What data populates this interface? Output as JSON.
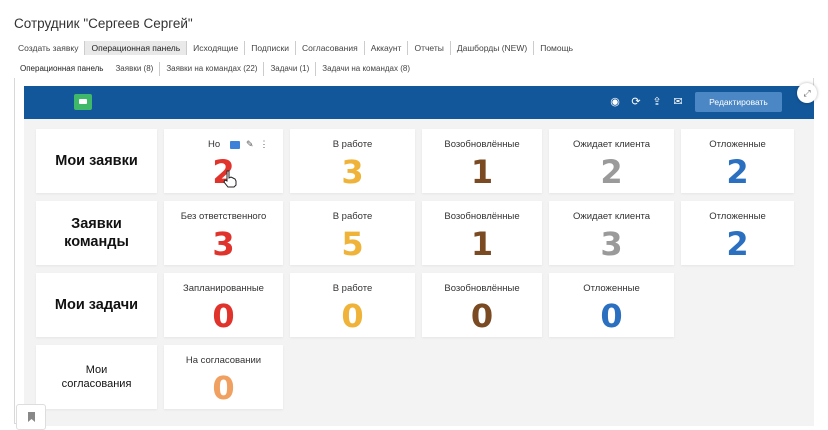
{
  "page_title": "Сотрудник \"Сергеев Сергей\"",
  "top_tabs": [
    "Создать заявку",
    "Операционная панель",
    "Исходящие",
    "Подписки",
    "Согласования",
    "Аккаунт",
    "Отчеты",
    "Дашборды (NEW)",
    "Помощь"
  ],
  "sub_tabs": [
    "Операционная панель",
    "Заявки (8)",
    "Заявки на командах (22)",
    "Задачи (1)",
    "Задачи на командах (8)"
  ],
  "toolbar": {
    "edit_label": "Редактировать",
    "accent": "#12579a",
    "icons": [
      "chat-icon",
      "filter-icon",
      "refresh-icon",
      "upload-icon",
      "mail-icon",
      "expand-icon"
    ]
  },
  "rows": {
    "my_requests": {
      "title": "Мои заявки",
      "stats": [
        {
          "label": "Но",
          "value": "2",
          "color": "#e0332b"
        },
        {
          "label": "В работе",
          "value": "3",
          "color": "#f0b33a"
        },
        {
          "label": "Возобновлённые",
          "value": "1",
          "color": "#7a4a22"
        },
        {
          "label": "Ожидает клиента",
          "value": "2",
          "color": "#9a9a9a"
        },
        {
          "label": "Отложенные",
          "value": "2",
          "color": "#2a6fc0"
        }
      ]
    },
    "team_requests": {
      "title_line1": "Заявки",
      "title_line2": "команды",
      "stats": [
        {
          "label": "Без ответственного",
          "value": "3",
          "color": "#e0332b"
        },
        {
          "label": "В работе",
          "value": "5",
          "color": "#f0b33a"
        },
        {
          "label": "Возобновлённые",
          "value": "1",
          "color": "#7a4a22"
        },
        {
          "label": "Ожидает клиента",
          "value": "3",
          "color": "#9a9a9a"
        },
        {
          "label": "Отложенные",
          "value": "2",
          "color": "#2a6fc0"
        }
      ]
    },
    "my_tasks": {
      "title": "Мои задачи",
      "stats": [
        {
          "label": "Запланированные",
          "value": "0",
          "color": "#e0332b"
        },
        {
          "label": "В работе",
          "value": "0",
          "color": "#f0b33a"
        },
        {
          "label": "Возобновлённые",
          "value": "0",
          "color": "#7a4a22"
        },
        {
          "label": "Отложенные",
          "value": "0",
          "color": "#2a6fc0"
        }
      ]
    },
    "my_approvals": {
      "title_line1": "Мои",
      "title_line2": "согласования",
      "stats": [
        {
          "label": "На согласовании",
          "value": "0",
          "color": "#f0a060"
        }
      ]
    }
  }
}
